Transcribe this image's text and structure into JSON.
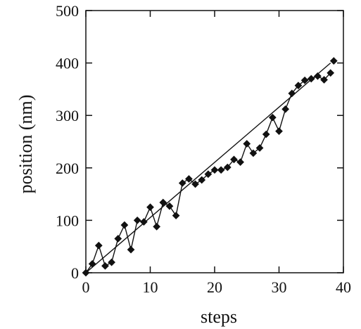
{
  "chart_data": {
    "type": "line",
    "xlabel": "steps",
    "ylabel": "position (nm)",
    "xlim": [
      0,
      40
    ],
    "ylim": [
      0,
      500
    ],
    "xticks": [
      0,
      10,
      20,
      30,
      40
    ],
    "yticks": [
      0,
      100,
      200,
      300,
      400,
      500
    ],
    "grid": false,
    "legend": "none",
    "series": [
      {
        "marker": "diamond",
        "color": "#111111",
        "x": [
          0,
          1,
          2,
          3,
          4,
          5,
          6,
          7,
          8,
          9,
          10,
          11,
          12,
          13,
          14,
          15,
          16,
          17,
          18,
          19,
          20,
          21,
          22,
          23,
          24,
          25,
          26,
          27,
          28,
          29,
          30,
          31,
          32,
          33,
          34,
          35,
          36,
          37,
          38
        ],
        "y": [
          0,
          17,
          52,
          13,
          20,
          65,
          91,
          44,
          100,
          97,
          125,
          88,
          134,
          127,
          109,
          171,
          179,
          169,
          177,
          188,
          196,
          196,
          201,
          216,
          211,
          246,
          228,
          238,
          264,
          296,
          270,
          312,
          342,
          357,
          367,
          370,
          375,
          368,
          381
        ]
      },
      {
        "type": "fit-line",
        "color": "#111111",
        "x": [
          0,
          38
        ],
        "y": [
          0,
          400
        ]
      }
    ],
    "extra_point": {
      "x": 38.5,
      "y": 404
    }
  }
}
